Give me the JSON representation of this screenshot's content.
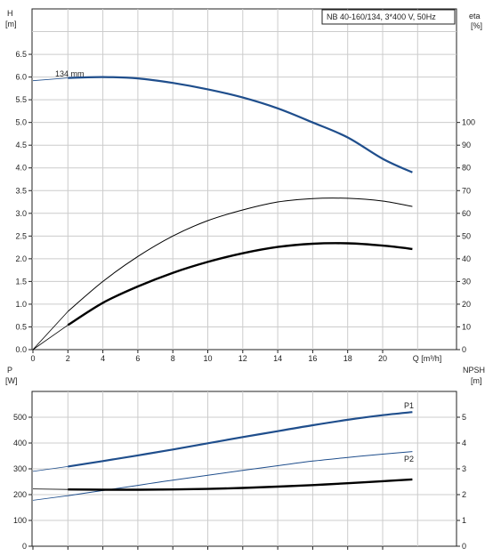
{
  "chart_data": [
    {
      "type": "line",
      "title": "NB 40-160/134, 3*400 V, 50Hz",
      "xlabel": "Q [m³/h]",
      "y_left_label": [
        "H",
        "[m]"
      ],
      "y_right_label": [
        "eta",
        "[%]"
      ],
      "x_ticks": [
        0,
        2,
        4,
        6,
        8,
        10,
        12,
        14,
        16,
        18,
        20
      ],
      "x_tick_labels": [
        "0",
        "2",
        "4",
        "6",
        "8",
        "10",
        "12",
        "14",
        "16",
        "18",
        "20"
      ],
      "xlim": [
        0,
        22
      ],
      "y_left_ticks": [
        0.0,
        0.5,
        1.0,
        1.5,
        2.0,
        2.5,
        3.0,
        3.5,
        4.0,
        4.5,
        5.0,
        5.5,
        6.0,
        6.5
      ],
      "y_left_tick_labels": [
        "0.0",
        "0.5",
        "1.0",
        "1.5",
        "2.0",
        "2.5",
        "3.0",
        "3.5",
        "4.0",
        "4.5",
        "5.0",
        "5.5",
        "6.0",
        "6.5"
      ],
      "y_left_lim": [
        0,
        7.5
      ],
      "y_right_ticks": [
        0,
        10,
        20,
        30,
        40,
        50,
        60,
        70,
        80,
        90,
        100
      ],
      "y_right_tick_labels": [
        "0",
        "10",
        "20",
        "30",
        "40",
        "50",
        "60",
        "70",
        "80",
        "90",
        "100"
      ],
      "y_right_lim": [
        0,
        150
      ],
      "grid": true,
      "series": [
        {
          "name": "134 mm",
          "axis": "left",
          "color": "#1f4e8c",
          "x": [
            2,
            4,
            6,
            8,
            10,
            12,
            14,
            16,
            18,
            20,
            21.7
          ],
          "y": [
            5.98,
            6.0,
            5.97,
            5.87,
            5.73,
            5.55,
            5.31,
            5.0,
            4.67,
            4.2,
            3.9
          ],
          "extension_x": [
            0,
            2
          ],
          "extension_y": [
            5.92,
            5.98
          ]
        },
        {
          "axis": "right",
          "color": "#000000",
          "x": [
            2,
            4,
            6,
            8,
            10,
            12,
            14,
            16,
            18,
            20,
            21.7
          ],
          "y": [
            16.8,
            30,
            41,
            50,
            56.8,
            61.5,
            65,
            66.5,
            66.6,
            65.4,
            63
          ],
          "extension_x": [
            0,
            2
          ],
          "extension_y": [
            0,
            16.8
          ]
        },
        {
          "axis": "right",
          "color": "#000000",
          "x": [
            2,
            4,
            6,
            8,
            10,
            12,
            14,
            16,
            18,
            20,
            21.7
          ],
          "y": [
            10.8,
            20.6,
            27.8,
            33.8,
            38.6,
            42.4,
            45.2,
            46.6,
            46.8,
            45.8,
            44.3
          ],
          "extension_x": [
            0,
            2
          ],
          "extension_y": [
            0,
            10.8
          ]
        }
      ]
    },
    {
      "type": "line",
      "xlabel": "",
      "y_left_label": [
        "P",
        "[W]"
      ],
      "y_right_label": [
        "NPSH",
        "[m]"
      ],
      "x_ticks": [
        0,
        2,
        4,
        6,
        8,
        10,
        12,
        14,
        16,
        18,
        20
      ],
      "xlim": [
        0,
        22
      ],
      "y_left_ticks": [
        0,
        100,
        200,
        300,
        400,
        500
      ],
      "y_left_tick_labels": [
        "0",
        "100",
        "200",
        "300",
        "400",
        "500"
      ],
      "y_left_lim": [
        0,
        600
      ],
      "y_right_ticks": [
        0,
        1,
        2,
        3,
        4,
        5
      ],
      "y_right_tick_labels": [
        "0",
        "1",
        "2",
        "3",
        "4",
        "5"
      ],
      "y_right_lim": [
        0,
        6
      ],
      "grid": true,
      "series": [
        {
          "name": "P1",
          "axis": "left",
          "color": "#1f4e8c",
          "x": [
            2,
            4,
            6,
            8,
            10,
            12,
            14,
            16,
            18,
            20,
            21.7
          ],
          "y": [
            309,
            330,
            352,
            375,
            399,
            423,
            446,
            469,
            490,
            508,
            520
          ],
          "extension_x": [
            0,
            2
          ],
          "extension_y": [
            290,
            309
          ]
        },
        {
          "name": "P2",
          "axis": "left",
          "color": "#1f4e8c",
          "x": [
            2,
            4,
            6,
            8,
            10,
            12,
            14,
            16,
            18,
            20,
            21.7
          ],
          "y": [
            196,
            216,
            236,
            256,
            275,
            294,
            312,
            330,
            344,
            357,
            367
          ],
          "extension_x": [
            0,
            2
          ],
          "extension_y": [
            178,
            196
          ]
        },
        {
          "axis": "right",
          "color": "#000000",
          "x": [
            2,
            4,
            6,
            8,
            10,
            12,
            14,
            16,
            18,
            20,
            21.7
          ],
          "y": [
            2.2,
            2.19,
            2.19,
            2.2,
            2.22,
            2.26,
            2.31,
            2.37,
            2.44,
            2.52,
            2.59
          ],
          "extension_x": [
            0,
            2
          ],
          "extension_y": [
            2.22,
            2.2
          ]
        }
      ]
    }
  ]
}
